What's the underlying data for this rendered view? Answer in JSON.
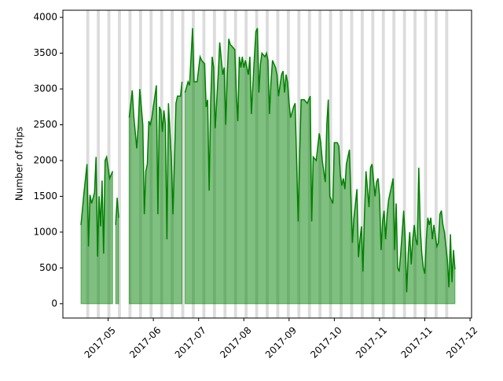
{
  "chart_data": {
    "type": "area",
    "ylabel": "Number of trips",
    "x": [
      12,
      14,
      16,
      17,
      18,
      19,
      21,
      22,
      23,
      24,
      25,
      26,
      27,
      28,
      29,
      30,
      31,
      33,
      34,
      35,
      36,
      37,
      40,
      44,
      46,
      47,
      49,
      50,
      51,
      53,
      54,
      55,
      56,
      57,
      58,
      59,
      62,
      63,
      64,
      65,
      66,
      67,
      68,
      69,
      70,
      72,
      73,
      75,
      76,
      78,
      79,
      80,
      81,
      83,
      84,
      86,
      87,
      89,
      91,
      92,
      94,
      95,
      96,
      97,
      98,
      99,
      100,
      101,
      103,
      104,
      106,
      107,
      108,
      109,
      110,
      111,
      112,
      114,
      115,
      116,
      117,
      118,
      119,
      120,
      121,
      123,
      124,
      125,
      127,
      128,
      129,
      130,
      131,
      132,
      134,
      135,
      136,
      137,
      138,
      139,
      141,
      142,
      143,
      145,
      146,
      147,
      148,
      149,
      150,
      151,
      153,
      154,
      155,
      156,
      157,
      158,
      160,
      162,
      163,
      164,
      165,
      166,
      168,
      170,
      171,
      172,
      174,
      175,
      176,
      177,
      179,
      180,
      182,
      183,
      184,
      185,
      186,
      187,
      188,
      190,
      191,
      192,
      193,
      195,
      196,
      197,
      198,
      199,
      200,
      201,
      202,
      203,
      204,
      205,
      207,
      208,
      209,
      210,
      211,
      212,
      213,
      214,
      215,
      216,
      217,
      219,
      220,
      221,
      222,
      223,
      224,
      225,
      226,
      227,
      228,
      229,
      230,
      231,
      232,
      233,
      234,
      235,
      236,
      237,
      238,
      239,
      240,
      241,
      242,
      243,
      244,
      245,
      246,
      248,
      249,
      250,
      251,
      252,
      253,
      255,
      256,
      257,
      258,
      259,
      260
    ],
    "series": [
      {
        "color": "#008000",
        "fill": "#008000",
        "fill_opacity": 0.5,
        "values": [
          1100,
          1550,
          1950,
          800,
          1520,
          1400,
          1550,
          2050,
          660,
          1500,
          1080,
          1720,
          700,
          2000,
          2050,
          1900,
          1750,
          1850,
          null,
          1100,
          1480,
          1200,
          null,
          2600,
          2980,
          2620,
          2170,
          2500,
          3000,
          2500,
          1250,
          1850,
          1950,
          2550,
          2500,
          2600,
          3050,
          1250,
          2750,
          2700,
          2400,
          2700,
          2500,
          900,
          2800,
          2000,
          1250,
          2800,
          2900,
          2900,
          3100,
          null,
          2950,
          3100,
          3050,
          3850,
          3100,
          3100,
          3450,
          3400,
          3350,
          2750,
          2850,
          1580,
          2800,
          3450,
          3300,
          2450,
          3200,
          3650,
          3200,
          3300,
          2500,
          3200,
          3700,
          3620,
          3600,
          3550,
          2950,
          2550,
          3450,
          3300,
          3450,
          3300,
          3400,
          3200,
          3450,
          2650,
          3450,
          3800,
          3850,
          2950,
          3350,
          3500,
          3450,
          3500,
          3400,
          2650,
          3100,
          3400,
          3300,
          3200,
          2900,
          3200,
          3250,
          2950,
          3200,
          3100,
          2800,
          2600,
          2750,
          2800,
          2000,
          1150,
          2100,
          2850,
          2850,
          2800,
          2850,
          2900,
          1150,
          2050,
          2000,
          2380,
          2250,
          2000,
          1700,
          2500,
          2850,
          1500,
          1400,
          2250,
          2250,
          2200,
          1800,
          1650,
          1750,
          1600,
          1950,
          2150,
          1500,
          850,
          1200,
          1600,
          650,
          900,
          1080,
          450,
          1250,
          1850,
          1600,
          1350,
          1900,
          1950,
          1500,
          1700,
          1750,
          1500,
          750,
          1150,
          1300,
          900,
          1250,
          1450,
          1550,
          1750,
          750,
          1400,
          500,
          450,
          700,
          1000,
          1300,
          900,
          160,
          700,
          1000,
          550,
          900,
          1100,
          900,
          820,
          1900,
          1050,
          700,
          500,
          420,
          900,
          1200,
          1100,
          1200,
          900,
          1100,
          800,
          850,
          1250,
          1300,
          1100,
          1000,
          600,
          230,
          970,
          300,
          750,
          480
        ]
      }
    ],
    "xlim": [
      0,
      271
    ],
    "ylim": [
      -200,
      4100
    ],
    "xticks": [
      {
        "value": 30,
        "label": "2017-05"
      },
      {
        "value": 60,
        "label": "2017-06"
      },
      {
        "value": 90,
        "label": "2017-07"
      },
      {
        "value": 120,
        "label": "2017-08"
      },
      {
        "value": 150,
        "label": "2017-09"
      },
      {
        "value": 180,
        "label": "2017-10"
      },
      {
        "value": 210,
        "label": "2017-11"
      },
      {
        "value": 240,
        "label": "2017-11"
      },
      {
        "value": 270,
        "label": "2017-12"
      }
    ],
    "yticks": [
      0,
      500,
      1000,
      1500,
      2000,
      2500,
      3000,
      3500,
      4000
    ],
    "shaded_x": [
      15.5,
      22.5,
      29.5,
      36.5,
      43.5,
      50.5,
      57.5,
      64.5,
      71.5,
      78.5,
      85.5,
      92.5,
      99.5,
      106.5,
      113.5,
      120.5,
      127.5,
      134.5,
      141.5,
      148.5,
      155.5,
      162.5,
      169.5,
      176.5,
      183.5,
      190.5,
      197.5,
      204.5,
      211.5,
      218.5,
      225.5,
      232.5,
      239.5,
      246.5,
      253.5
    ],
    "shaded_width": 2,
    "shaded_color": "#dcdcdc"
  }
}
